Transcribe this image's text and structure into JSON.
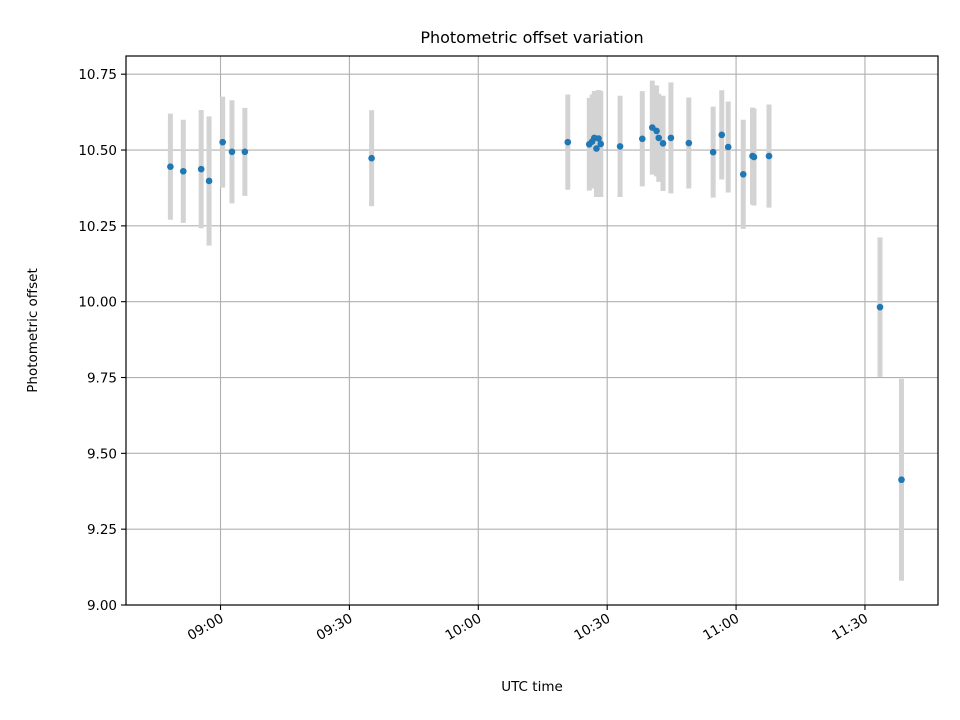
{
  "chart_data": {
    "type": "scatter",
    "title": "Photometric offset variation",
    "xlabel": "UTC time",
    "ylabel": "Photometric offset",
    "xlim": [
      "08:38",
      "11:47"
    ],
    "ylim": [
      9.0,
      10.81
    ],
    "x_ticks": [
      "09:00",
      "09:30",
      "10:00",
      "10:30",
      "11:00",
      "11:30"
    ],
    "y_ticks": [
      "9.00",
      "9.25",
      "9.50",
      "9.75",
      "10.00",
      "10.25",
      "10.50",
      "10.75"
    ],
    "grid": true,
    "error_bar_color": "#d3d3d3",
    "point_color": "#1f77b4",
    "points": [
      {
        "time": "08:48:20",
        "value": 10.445,
        "error": 0.175
      },
      {
        "time": "08:51:20",
        "value": 10.43,
        "error": 0.17
      },
      {
        "time": "08:55:30",
        "value": 10.437,
        "error": 0.195
      },
      {
        "time": "08:57:20",
        "value": 10.398,
        "error": 0.213
      },
      {
        "time": "09:00:30",
        "value": 10.526,
        "error": 0.15
      },
      {
        "time": "09:02:40",
        "value": 10.494,
        "error": 0.17
      },
      {
        "time": "09:05:40",
        "value": 10.494,
        "error": 0.145
      },
      {
        "time": "09:35:10",
        "value": 10.473,
        "error": 0.158
      },
      {
        "time": "10:20:50",
        "value": 10.526,
        "error": 0.157
      },
      {
        "time": "10:25:50",
        "value": 10.519,
        "error": 0.153
      },
      {
        "time": "10:26:30",
        "value": 10.528,
        "error": 0.155
      },
      {
        "time": "10:27:00",
        "value": 10.54,
        "error": 0.155
      },
      {
        "time": "10:27:30",
        "value": 10.505,
        "error": 0.16
      },
      {
        "time": "10:28:00",
        "value": 10.538,
        "error": 0.16
      },
      {
        "time": "10:28:30",
        "value": 10.52,
        "error": 0.175
      },
      {
        "time": "10:33:00",
        "value": 10.512,
        "error": 0.167
      },
      {
        "time": "10:38:10",
        "value": 10.537,
        "error": 0.157
      },
      {
        "time": "10:40:30",
        "value": 10.574,
        "error": 0.155
      },
      {
        "time": "10:41:30",
        "value": 10.563,
        "error": 0.15
      },
      {
        "time": "10:42:00",
        "value": 10.54,
        "error": 0.145
      },
      {
        "time": "10:43:00",
        "value": 10.522,
        "error": 0.157
      },
      {
        "time": "10:44:50",
        "value": 10.54,
        "error": 0.183
      },
      {
        "time": "10:49:00",
        "value": 10.523,
        "error": 0.15
      },
      {
        "time": "10:54:40",
        "value": 10.493,
        "error": 0.15
      },
      {
        "time": "10:56:40",
        "value": 10.55,
        "error": 0.147
      },
      {
        "time": "10:58:10",
        "value": 10.51,
        "error": 0.15
      },
      {
        "time": "11:01:40",
        "value": 10.42,
        "error": 0.18
      },
      {
        "time": "11:03:50",
        "value": 10.48,
        "error": 0.16
      },
      {
        "time": "11:04:10",
        "value": 10.477,
        "error": 0.16
      },
      {
        "time": "11:07:40",
        "value": 10.48,
        "error": 0.17
      },
      {
        "time": "11:33:30",
        "value": 9.982,
        "error": 0.23
      },
      {
        "time": "11:38:30",
        "value": 9.413,
        "error": 0.333
      }
    ]
  }
}
